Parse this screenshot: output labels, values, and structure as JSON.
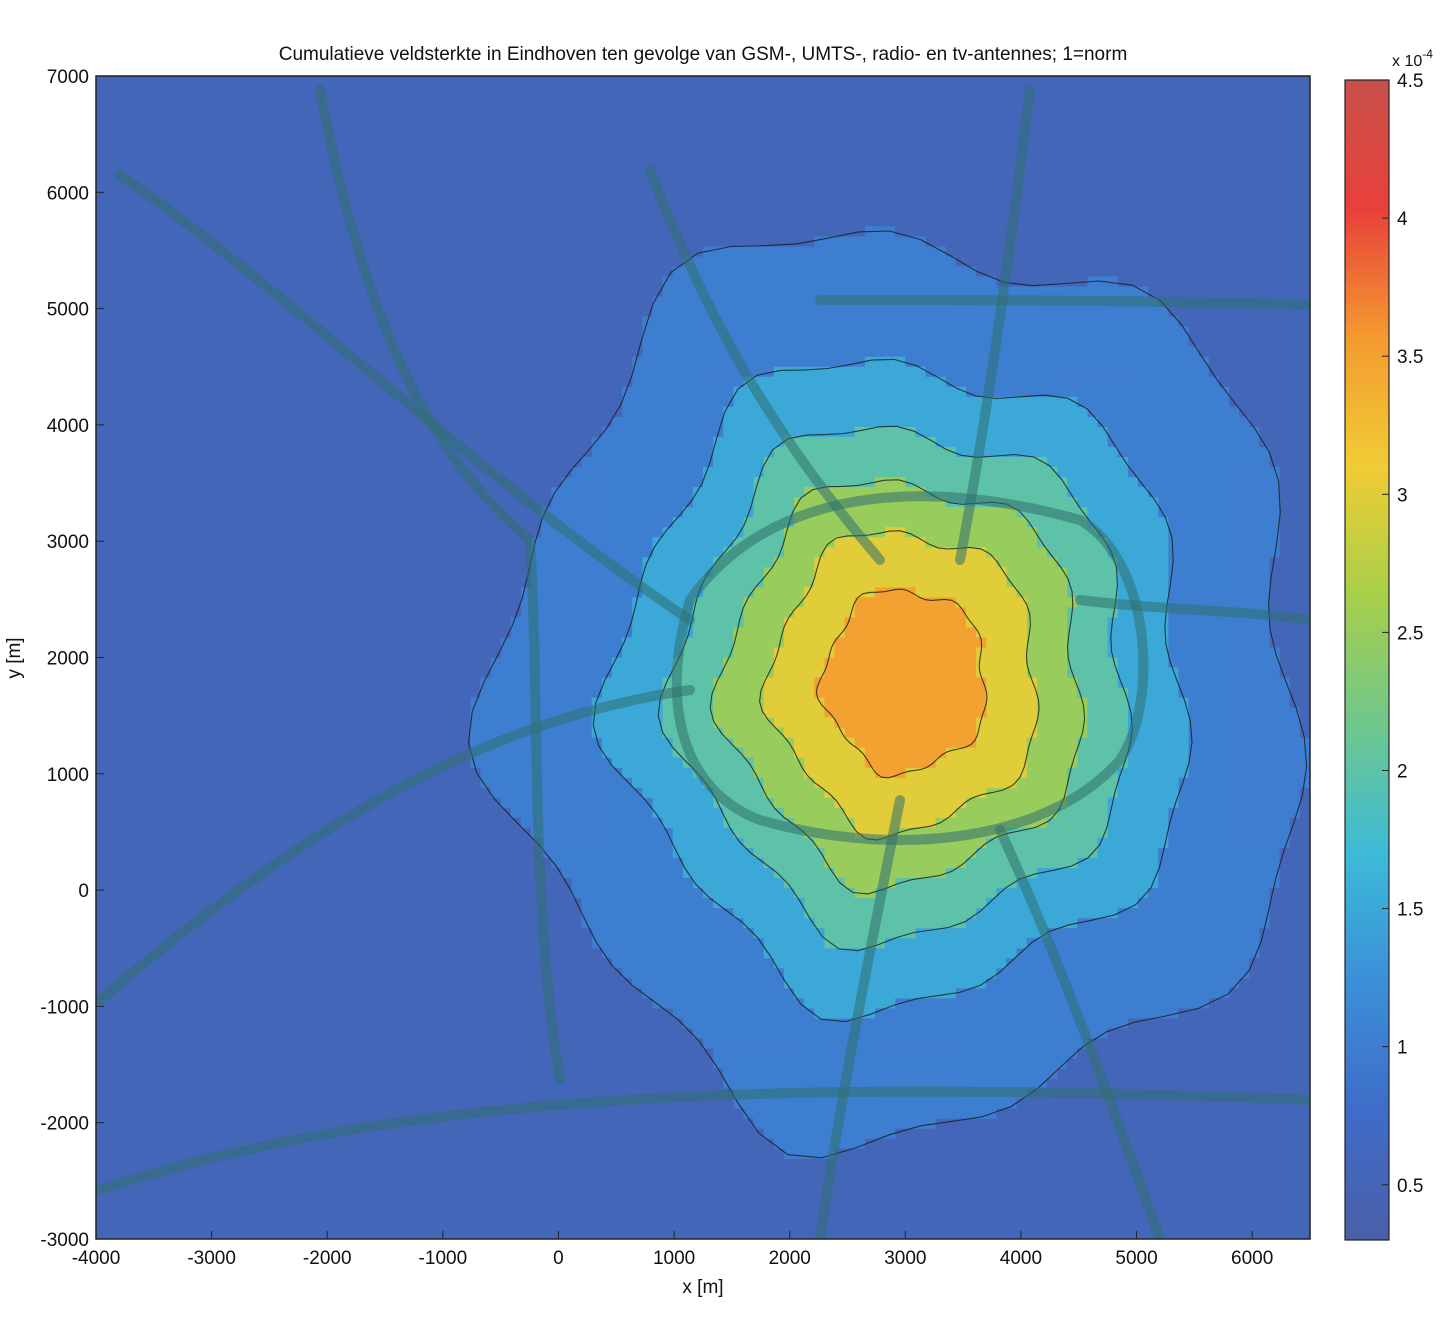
{
  "chart_data": {
    "type": "heatmap",
    "title": "Cumulatieve veldsterkte in Eindhoven ten gevolge van GSM-, UMTS-, radio- en tv-antennes; 1=norm",
    "xlabel": "x [m]",
    "ylabel": "y [m]",
    "xlim": [
      -4000,
      6500
    ],
    "ylim": [
      -3000,
      7000
    ],
    "x_ticks": [
      "-4000",
      "-3000",
      "-2000",
      "-1000",
      "0",
      "1000",
      "2000",
      "3000",
      "4000",
      "5000",
      "6000"
    ],
    "y_ticks": [
      "-3000",
      "-2000",
      "-1000",
      "0",
      "1000",
      "2000",
      "3000",
      "4000",
      "5000",
      "6000",
      "7000"
    ],
    "colorbar": {
      "exponent_label": "x 10",
      "exponent_power": "-4",
      "range": [
        0.3,
        4.5
      ],
      "ticks": [
        "0.5",
        "1",
        "1.5",
        "2",
        "2.5",
        "3",
        "3.5",
        "4",
        "4.5"
      ],
      "colors": [
        "#4a5fa8",
        "#3f6cc8",
        "#3b8fd8",
        "#3dbad8",
        "#6fc78c",
        "#a8cf4a",
        "#f0cc34",
        "#f49a30",
        "#e8403a",
        "#c8504a"
      ]
    },
    "field_model": {
      "peak_location": [
        3000,
        1800
      ],
      "peak_value": 3.6,
      "background_value": 0.6,
      "contour_levels": [
        0.75,
        1.25,
        1.75,
        2.25,
        2.75,
        3.25
      ]
    },
    "grid": false,
    "legend": "colorbar-right"
  }
}
